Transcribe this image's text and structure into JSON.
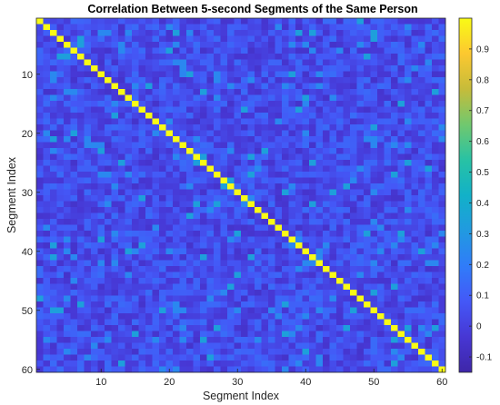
{
  "chart_data": {
    "type": "heatmap",
    "title": "Correlation Between 5-second Segments of the Same Person",
    "xlabel": "Segment Index",
    "ylabel": "Segment Index",
    "n_rows": 60,
    "n_cols": 60,
    "x_ticks": [
      10,
      20,
      30,
      40,
      50,
      60
    ],
    "y_ticks": [
      10,
      20,
      30,
      40,
      50,
      60
    ],
    "diagonal_value": 1.0,
    "off_diagonal_typical_range": [
      -0.1,
      0.3
    ],
    "off_diagonal_mean": 0.05,
    "colorbar": {
      "colormap": "parula",
      "range": [
        -0.15,
        1.0
      ],
      "ticks": [
        -0.1,
        0,
        0.1,
        0.2,
        0.3,
        0.4,
        0.5,
        0.6,
        0.7,
        0.8,
        0.9
      ],
      "tick_labels": [
        "-0.1",
        "0",
        "0.1",
        "0.2",
        "0.3",
        "0.4",
        "0.5",
        "0.6",
        "0.7",
        "0.8",
        "0.9"
      ]
    },
    "grid": false
  }
}
